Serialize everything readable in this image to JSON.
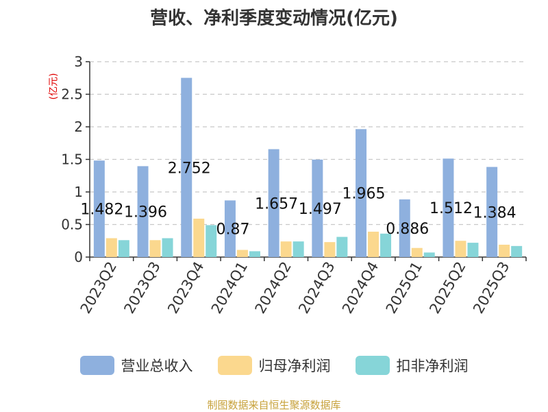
{
  "chart_data": {
    "type": "bar",
    "title": "营收、净利季度变动情况(亿元)",
    "y_unit": "(亿元)",
    "categories": [
      "2023Q2",
      "2023Q3",
      "2023Q4",
      "2024Q1",
      "2024Q2",
      "2024Q3",
      "2024Q4",
      "2025Q1",
      "2025Q2",
      "2025Q3"
    ],
    "series": [
      {
        "name": "营业总收入",
        "color": "#8eb0de",
        "values": [
          1.482,
          1.396,
          2.752,
          0.87,
          1.657,
          1.497,
          1.965,
          0.886,
          1.512,
          1.384
        ],
        "value_labels": [
          "1.482",
          "1.396",
          "2.752",
          "0.87",
          "1.657",
          "1.497",
          "1.965",
          "0.886",
          "1.512",
          "1.384"
        ]
      },
      {
        "name": "归母净利润",
        "color": "#fbd88e",
        "values": [
          0.29,
          0.26,
          0.59,
          0.11,
          0.24,
          0.23,
          0.39,
          0.14,
          0.25,
          0.19
        ]
      },
      {
        "name": "扣非净利润",
        "color": "#86d5d8",
        "values": [
          0.26,
          0.29,
          0.49,
          0.09,
          0.24,
          0.31,
          0.36,
          0.07,
          0.22,
          0.17
        ]
      }
    ],
    "y_ticks": [
      "0",
      "0.5",
      "1",
      "1.5",
      "2",
      "2.5",
      "3"
    ],
    "ylim": [
      0,
      3
    ],
    "grid": true,
    "legend_position": "bottom"
  },
  "source_note": "制图数据来自恒生聚源数据库"
}
